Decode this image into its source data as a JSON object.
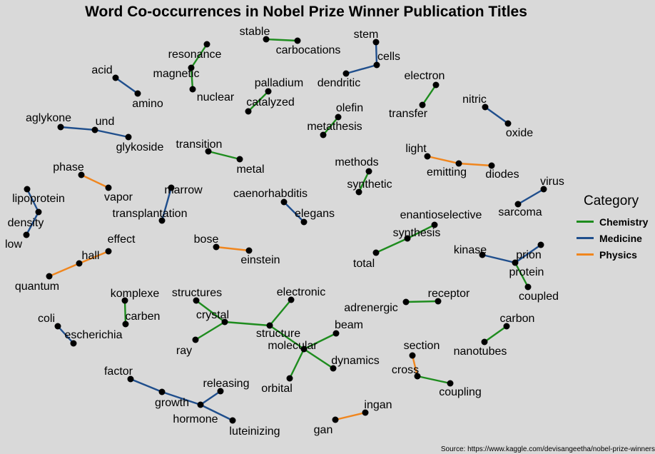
{
  "title": "Word Co-occurrences in Nobel Prize Winner Publication Titles",
  "source": "Source: https://www.kaggle.com/devisangeetha/nobel-prize-winners",
  "legend": {
    "title": "Category",
    "items": [
      {
        "label": "Chemistry",
        "color": "#1e8c1e"
      },
      {
        "label": "Medicine",
        "color": "#1f4e8c"
      },
      {
        "label": "Physics",
        "color": "#f0861e"
      }
    ]
  },
  "nodes": [
    {
      "id": "stable",
      "label": "stable"
    },
    {
      "id": "carbocations",
      "label": "carbocations"
    },
    {
      "id": "stem",
      "label": "stem"
    },
    {
      "id": "cells",
      "label": "cells"
    },
    {
      "id": "dendritic",
      "label": "dendritic"
    },
    {
      "id": "resonance",
      "label": "resonance"
    },
    {
      "id": "magnetic",
      "label": "magnetic"
    },
    {
      "id": "nuclear",
      "label": "nuclear"
    },
    {
      "id": "acid",
      "label": "acid"
    },
    {
      "id": "amino",
      "label": "amino"
    },
    {
      "id": "palladium",
      "label": "palladium"
    },
    {
      "id": "catalyzed",
      "label": "catalyzed"
    },
    {
      "id": "electron",
      "label": "electron"
    },
    {
      "id": "transfer",
      "label": "transfer"
    },
    {
      "id": "nitric",
      "label": "nitric"
    },
    {
      "id": "oxide",
      "label": "oxide"
    },
    {
      "id": "olefin",
      "label": "olefin"
    },
    {
      "id": "metathesis",
      "label": "metathesis"
    },
    {
      "id": "aglykone",
      "label": "aglykone"
    },
    {
      "id": "und",
      "label": "und"
    },
    {
      "id": "glykoside",
      "label": "glykoside"
    },
    {
      "id": "transition",
      "label": "transition"
    },
    {
      "id": "metal",
      "label": "metal"
    },
    {
      "id": "light",
      "label": "light"
    },
    {
      "id": "emitting",
      "label": "emitting"
    },
    {
      "id": "diodes",
      "label": "diodes"
    },
    {
      "id": "phase",
      "label": "phase"
    },
    {
      "id": "vapor",
      "label": "vapor"
    },
    {
      "id": "methods",
      "label": "methods"
    },
    {
      "id": "synthetic",
      "label": "synthetic"
    },
    {
      "id": "marrow",
      "label": "marrow"
    },
    {
      "id": "transplantation",
      "label": "transplantation"
    },
    {
      "id": "virus",
      "label": "virus"
    },
    {
      "id": "sarcoma",
      "label": "sarcoma"
    },
    {
      "id": "lipoprotein",
      "label": "lipoprotein"
    },
    {
      "id": "density",
      "label": "density"
    },
    {
      "id": "low",
      "label": "low"
    },
    {
      "id": "caenorhabditis",
      "label": "caenorhabditis"
    },
    {
      "id": "elegans",
      "label": "elegans"
    },
    {
      "id": "enantioselective",
      "label": "enantioselective"
    },
    {
      "id": "synthesis",
      "label": "synthesis"
    },
    {
      "id": "total",
      "label": "total"
    },
    {
      "id": "effect",
      "label": "effect"
    },
    {
      "id": "hall",
      "label": "hall"
    },
    {
      "id": "quantum",
      "label": "quantum"
    },
    {
      "id": "bose",
      "label": "bose"
    },
    {
      "id": "einstein",
      "label": "einstein"
    },
    {
      "id": "kinase",
      "label": "kinase"
    },
    {
      "id": "prion",
      "label": "prion"
    },
    {
      "id": "protein",
      "label": "protein"
    },
    {
      "id": "coupled",
      "label": "coupled"
    },
    {
      "id": "komplexe",
      "label": "komplexe"
    },
    {
      "id": "carben",
      "label": "carben"
    },
    {
      "id": "structures",
      "label": "structures"
    },
    {
      "id": "crystal",
      "label": "crystal"
    },
    {
      "id": "electronic",
      "label": "electronic"
    },
    {
      "id": "structure",
      "label": "structure"
    },
    {
      "id": "ray",
      "label": "ray"
    },
    {
      "id": "receptor",
      "label": "receptor"
    },
    {
      "id": "adrenergic",
      "label": "adrenergic"
    },
    {
      "id": "beam",
      "label": "beam"
    },
    {
      "id": "molecular",
      "label": "molecular"
    },
    {
      "id": "dynamics",
      "label": "dynamics"
    },
    {
      "id": "orbital",
      "label": "orbital"
    },
    {
      "id": "coli",
      "label": "coli"
    },
    {
      "id": "escherichia",
      "label": "escherichia"
    },
    {
      "id": "carbon",
      "label": "carbon"
    },
    {
      "id": "nanotubes",
      "label": "nanotubes"
    },
    {
      "id": "section",
      "label": "section"
    },
    {
      "id": "cross",
      "label": "cross"
    },
    {
      "id": "coupling",
      "label": "coupling"
    },
    {
      "id": "factor",
      "label": "factor"
    },
    {
      "id": "releasing",
      "label": "releasing"
    },
    {
      "id": "growth",
      "label": "growth"
    },
    {
      "id": "hormone",
      "label": "hormone"
    },
    {
      "id": "luteinizing",
      "label": "luteinizing"
    },
    {
      "id": "ingan",
      "label": "ingan"
    },
    {
      "id": "gan",
      "label": "gan"
    }
  ],
  "edges": [
    {
      "from": "stable",
      "to": "carbocations",
      "category": "Chemistry"
    },
    {
      "from": "stem",
      "to": "cells",
      "category": "Medicine"
    },
    {
      "from": "cells",
      "to": "dendritic",
      "category": "Medicine"
    },
    {
      "from": "resonance",
      "to": "magnetic",
      "category": "Chemistry"
    },
    {
      "from": "magnetic",
      "to": "nuclear",
      "category": "Chemistry"
    },
    {
      "from": "acid",
      "to": "amino",
      "category": "Medicine"
    },
    {
      "from": "palladium",
      "to": "catalyzed",
      "category": "Chemistry"
    },
    {
      "from": "electron",
      "to": "transfer",
      "category": "Chemistry"
    },
    {
      "from": "nitric",
      "to": "oxide",
      "category": "Medicine"
    },
    {
      "from": "olefin",
      "to": "metathesis",
      "category": "Chemistry"
    },
    {
      "from": "aglykone",
      "to": "und",
      "category": "Medicine"
    },
    {
      "from": "und",
      "to": "glykoside",
      "category": "Medicine"
    },
    {
      "from": "transition",
      "to": "metal",
      "category": "Chemistry"
    },
    {
      "from": "light",
      "to": "emitting",
      "category": "Physics"
    },
    {
      "from": "emitting",
      "to": "diodes",
      "category": "Physics"
    },
    {
      "from": "phase",
      "to": "vapor",
      "category": "Physics"
    },
    {
      "from": "methods",
      "to": "synthetic",
      "category": "Chemistry"
    },
    {
      "from": "marrow",
      "to": "transplantation",
      "category": "Medicine"
    },
    {
      "from": "virus",
      "to": "sarcoma",
      "category": "Medicine"
    },
    {
      "from": "lipoprotein",
      "to": "density",
      "category": "Medicine"
    },
    {
      "from": "density",
      "to": "low",
      "category": "Medicine"
    },
    {
      "from": "caenorhabditis",
      "to": "elegans",
      "category": "Medicine"
    },
    {
      "from": "enantioselective",
      "to": "synthesis",
      "category": "Chemistry"
    },
    {
      "from": "synthesis",
      "to": "total",
      "category": "Chemistry"
    },
    {
      "from": "effect",
      "to": "hall",
      "category": "Physics"
    },
    {
      "from": "hall",
      "to": "quantum",
      "category": "Physics"
    },
    {
      "from": "bose",
      "to": "einstein",
      "category": "Physics"
    },
    {
      "from": "kinase",
      "to": "protein",
      "category": "Medicine"
    },
    {
      "from": "prion",
      "to": "protein",
      "category": "Medicine"
    },
    {
      "from": "protein",
      "to": "coupled",
      "category": "Chemistry"
    },
    {
      "from": "komplexe",
      "to": "carben",
      "category": "Chemistry"
    },
    {
      "from": "structures",
      "to": "crystal",
      "category": "Chemistry"
    },
    {
      "from": "crystal",
      "to": "structure",
      "category": "Chemistry"
    },
    {
      "from": "crystal",
      "to": "ray",
      "category": "Chemistry"
    },
    {
      "from": "electronic",
      "to": "structure",
      "category": "Chemistry"
    },
    {
      "from": "structure",
      "to": "molecular",
      "category": "Chemistry"
    },
    {
      "from": "adrenergic",
      "to": "receptor",
      "category": "Chemistry"
    },
    {
      "from": "molecular",
      "to": "beam",
      "category": "Chemistry"
    },
    {
      "from": "molecular",
      "to": "dynamics",
      "category": "Chemistry"
    },
    {
      "from": "molecular",
      "to": "orbital",
      "category": "Chemistry"
    },
    {
      "from": "coli",
      "to": "escherichia",
      "category": "Medicine"
    },
    {
      "from": "carbon",
      "to": "nanotubes",
      "category": "Chemistry"
    },
    {
      "from": "section",
      "to": "cross",
      "category": "Physics"
    },
    {
      "from": "cross",
      "to": "coupling",
      "category": "Chemistry"
    },
    {
      "from": "factor",
      "to": "growth",
      "category": "Medicine"
    },
    {
      "from": "growth",
      "to": "hormone",
      "category": "Medicine"
    },
    {
      "from": "releasing",
      "to": "hormone",
      "category": "Medicine"
    },
    {
      "from": "hormone",
      "to": "luteinizing",
      "category": "Medicine"
    },
    {
      "from": "gan",
      "to": "ingan",
      "category": "Physics"
    }
  ]
}
